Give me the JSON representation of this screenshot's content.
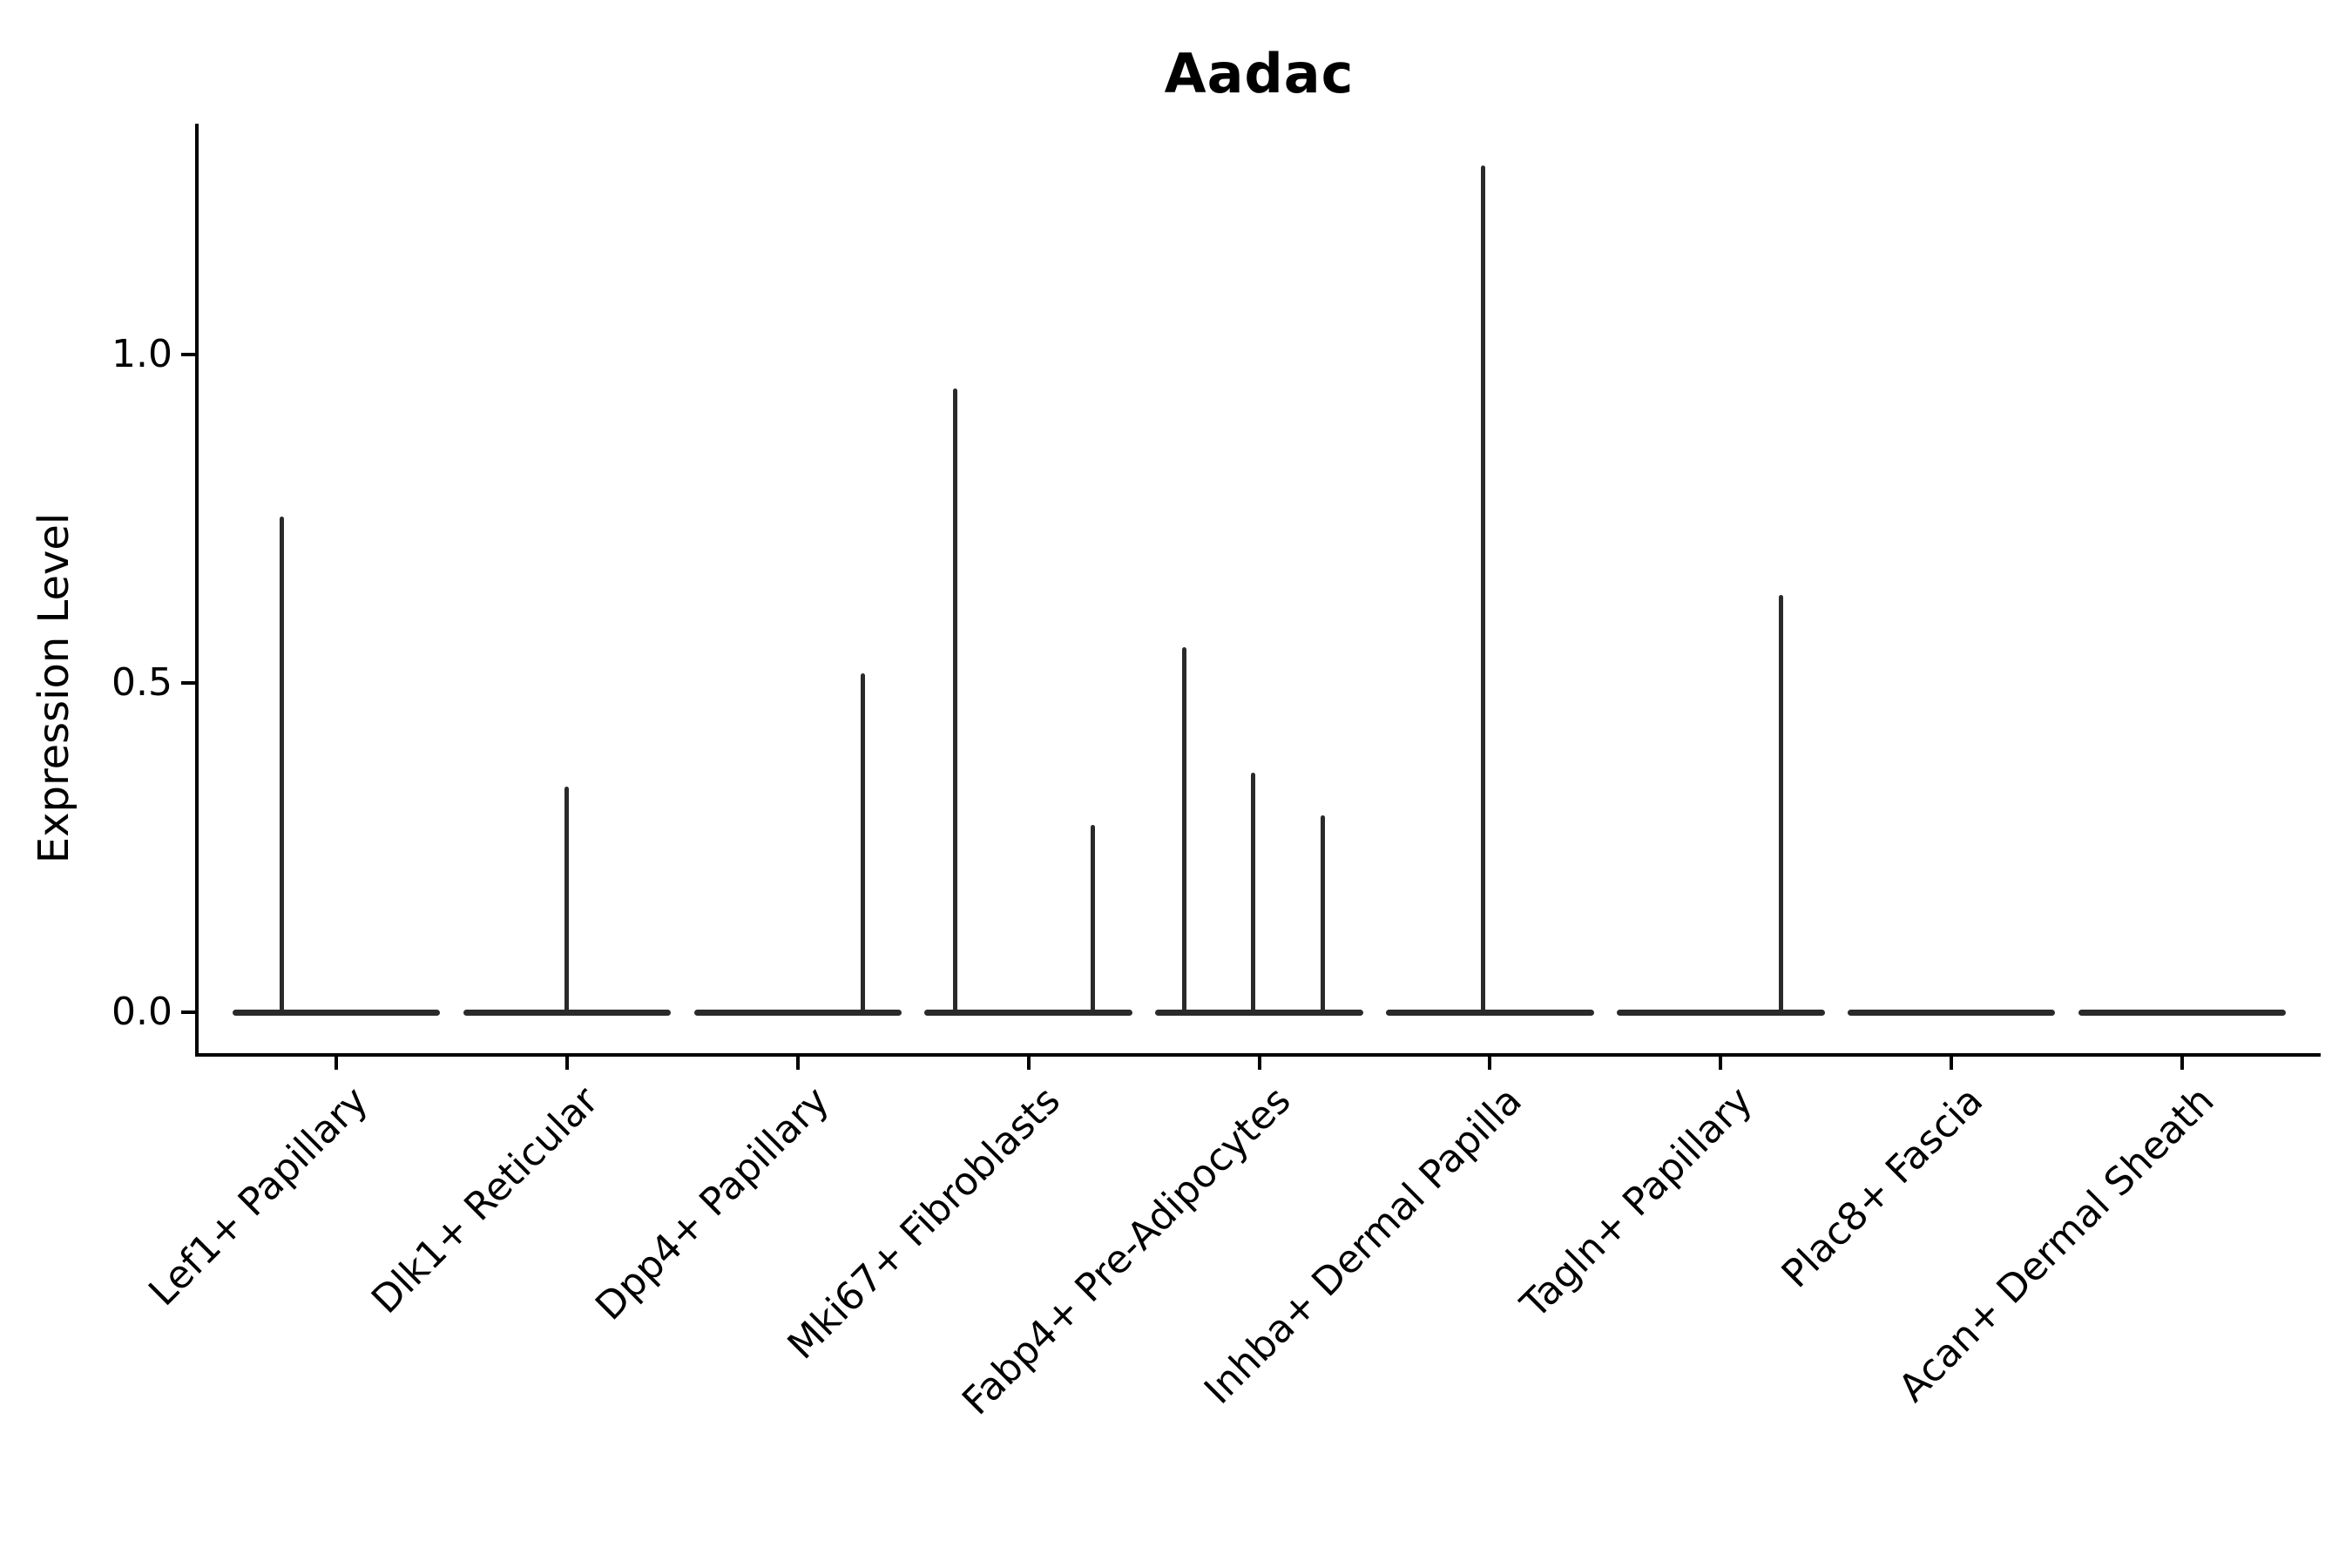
{
  "figure": {
    "title": "Aadac",
    "background_color": "#ffffff",
    "line_color": "#2a2a2a",
    "axis_color": "#000000"
  },
  "chart_data": {
    "type": "violin",
    "title": "Aadac",
    "xlabel": "",
    "ylabel": "Expression Level",
    "ylim": [
      0,
      1.35
    ],
    "grid": false,
    "legend": null,
    "yticks": [
      {
        "label": "0.0",
        "value": 0.0
      },
      {
        "label": "0.5",
        "value": 0.5
      },
      {
        "label": "1.0",
        "value": 1.0
      }
    ],
    "categories": [
      "Lef1+ Papillary",
      "Dlk1+ Reticular",
      "Dpp4+ Papillary",
      "Mki67+ Fibroblasts",
      "Fabp4+ Pre-Adipocytes",
      "Inhba+ Dermal Papilla",
      "Tagln+ Papillary",
      "Plac8+ Fascia",
      "Acan+ Dermal Sheath"
    ],
    "series": [
      {
        "name": "Lef1+ Papillary",
        "max_expression": 0.75,
        "spikes": [
          {
            "dx": -0.235,
            "value": 0.754
          }
        ]
      },
      {
        "name": "Dlk1+ Reticular",
        "max_expression": 0.34,
        "spikes": [
          {
            "dx": 0.0,
            "value": 0.343
          }
        ]
      },
      {
        "name": "Dpp4+ Papillary",
        "max_expression": 0.52,
        "spikes": [
          {
            "dx": 0.284,
            "value": 0.515
          }
        ]
      },
      {
        "name": "Mki67+ Fibroblasts",
        "max_expression": 0.95,
        "spikes": [
          {
            "dx": -0.318,
            "value": 0.948
          },
          {
            "dx": 0.28,
            "value": 0.285
          }
        ]
      },
      {
        "name": "Fabp4+ Pre-Adipocytes",
        "max_expression": 0.56,
        "spikes": [
          {
            "dx": -0.325,
            "value": 0.555
          },
          {
            "dx": -0.026,
            "value": 0.364
          },
          {
            "dx": 0.276,
            "value": 0.299
          }
        ]
      },
      {
        "name": "Inhba+ Dermal Papilla",
        "max_expression": 1.29,
        "spikes": [
          {
            "dx": -0.03,
            "value": 1.287
          }
        ]
      },
      {
        "name": "Tagln+ Papillary",
        "max_expression": 0.63,
        "spikes": [
          {
            "dx": 0.26,
            "value": 0.634
          }
        ]
      },
      {
        "name": "Plac8+ Fascia",
        "max_expression": 0.0,
        "spikes": []
      },
      {
        "name": "Acan+ Dermal Sheath",
        "max_expression": 0.0,
        "spikes": []
      }
    ],
    "violin_base_halfwidth_units": 0.45
  }
}
